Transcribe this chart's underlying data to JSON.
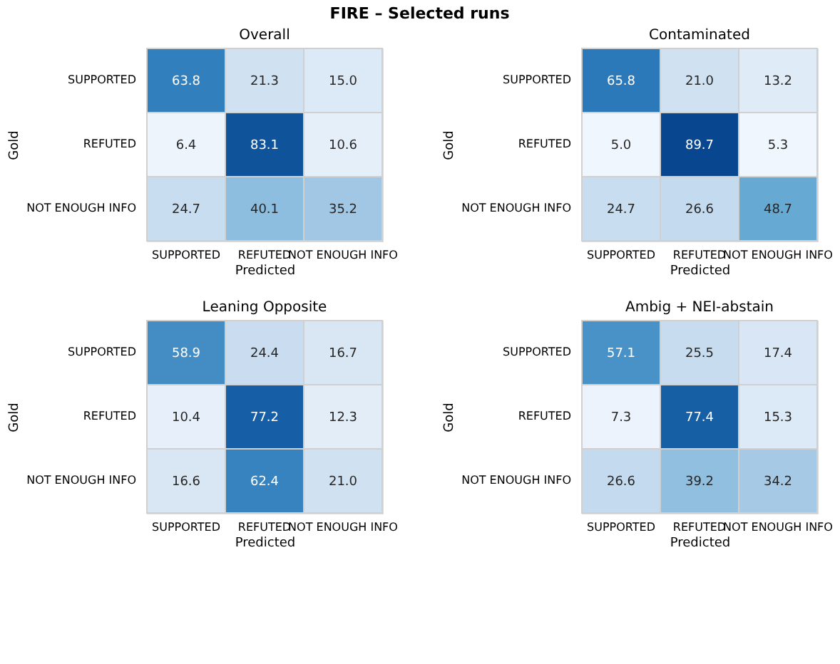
{
  "chart_data": [
    {
      "type": "heatmap",
      "title": "Overall",
      "xlabel": "Predicted",
      "ylabel": "Gold",
      "annotations": [
        "FIRE – Selected runs"
      ],
      "categories": [
        "SUPPORTED",
        "REFUTED",
        "NOT ENOUGH INFO"
      ],
      "y_categories": [
        "SUPPORTED",
        "REFUTED",
        "NOT ENOUGH INFO"
      ],
      "cells": [
        [
          63.8,
          21.3,
          15.0
        ],
        [
          6.4,
          83.1,
          10.6
        ],
        [
          24.7,
          40.1,
          35.2
        ]
      ],
      "cell_labels": [
        [
          "63.8",
          "21.3",
          "15.0"
        ],
        [
          "6.4",
          "83.1",
          "10.6"
        ],
        [
          "24.7",
          "40.1",
          "35.2"
        ]
      ]
    },
    {
      "type": "heatmap",
      "title": "Contaminated",
      "xlabel": "Predicted",
      "ylabel": "Gold",
      "categories": [
        "SUPPORTED",
        "REFUTED",
        "NOT ENOUGH INFO"
      ],
      "y_categories": [
        "SUPPORTED",
        "REFUTED",
        "NOT ENOUGH INFO"
      ],
      "cells": [
        [
          65.8,
          21.0,
          13.2
        ],
        [
          5.0,
          89.7,
          5.3
        ],
        [
          24.7,
          26.6,
          48.7
        ]
      ],
      "cell_labels": [
        [
          "65.8",
          "21.0",
          "13.2"
        ],
        [
          "5.0",
          "89.7",
          "5.3"
        ],
        [
          "24.7",
          "26.6",
          "48.7"
        ]
      ]
    },
    {
      "type": "heatmap",
      "title": "Leaning Opposite",
      "xlabel": "Predicted",
      "ylabel": "Gold",
      "categories": [
        "SUPPORTED",
        "REFUTED",
        "NOT ENOUGH INFO"
      ],
      "y_categories": [
        "SUPPORTED",
        "REFUTED",
        "NOT ENOUGH INFO"
      ],
      "cells": [
        [
          58.9,
          24.4,
          16.7
        ],
        [
          10.4,
          77.2,
          12.3
        ],
        [
          16.6,
          62.4,
          21.0
        ]
      ],
      "cell_labels": [
        [
          "58.9",
          "24.4",
          "16.7"
        ],
        [
          "10.4",
          "77.2",
          "12.3"
        ],
        [
          "16.6",
          "62.4",
          "21.0"
        ]
      ]
    },
    {
      "type": "heatmap",
      "title": "Ambig + NEI-abstain",
      "xlabel": "Predicted",
      "ylabel": "Gold",
      "categories": [
        "SUPPORTED",
        "REFUTED",
        "NOT ENOUGH INFO"
      ],
      "y_categories": [
        "SUPPORTED",
        "REFUTED",
        "NOT ENOUGH INFO"
      ],
      "cells": [
        [
          57.1,
          25.5,
          17.4
        ],
        [
          7.3,
          77.4,
          15.3
        ],
        [
          26.6,
          39.2,
          34.2
        ]
      ],
      "cell_labels": [
        [
          "57.1",
          "25.5",
          "17.4"
        ],
        [
          "7.3",
          "77.4",
          "15.3"
        ],
        [
          "26.6",
          "39.2",
          "34.2"
        ]
      ]
    }
  ]
}
